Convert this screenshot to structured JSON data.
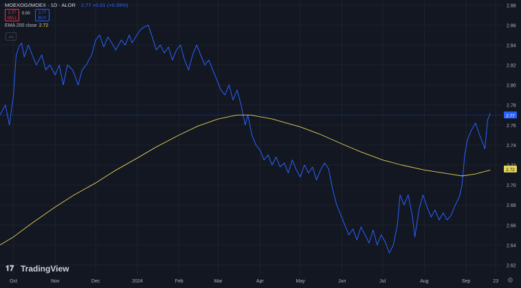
{
  "header": {
    "symbol": "MOEXOG/IMOEX · 1D · ALOR",
    "quote": "2.77 +0.01 (+0.39%)",
    "sell_price": "2.77",
    "sell_label": "SELL",
    "buy_price": "2.77",
    "buy_label": "BUY",
    "spread": "0.00"
  },
  "indicator": {
    "label": "EMA 200 close",
    "value": "2.72"
  },
  "collapse_glyph": "︿",
  "branding": {
    "logo": "TradingView"
  },
  "colors": {
    "background": "#131722",
    "price_line": "#2962ff",
    "ema_line": "#e5d559",
    "grid": "#1e222d"
  },
  "icons": [
    "collapse-icon",
    "tradingview-logo-icon",
    "settings-gear-icon"
  ],
  "chart_data": {
    "type": "line",
    "y_scale": "linear",
    "ylim": [
      2.61,
      2.885
    ],
    "yticks": [
      2.62,
      2.64,
      2.66,
      2.68,
      2.7,
      2.72,
      2.74,
      2.76,
      2.78,
      2.8,
      2.82,
      2.84,
      2.86,
      2.88
    ],
    "ytick_labels": [
      "2.62",
      "2.64",
      "2.66",
      "2.68",
      "2.70",
      "2.72",
      "2.74",
      "2.76",
      "2.78",
      "2.80",
      "2.82",
      "2.84",
      "2.86",
      "2.88"
    ],
    "x_start": "2023-09-21",
    "x_end": "2024-09-28",
    "xticks": [
      {
        "date": "2023-10-01",
        "label": "Oct"
      },
      {
        "date": "2023-11-01",
        "label": "Nov"
      },
      {
        "date": "2023-12-01",
        "label": "Dec"
      },
      {
        "date": "2024-01-01",
        "label": "2024"
      },
      {
        "date": "2024-02-01",
        "label": "Feb"
      },
      {
        "date": "2024-03-01",
        "label": "Mar"
      },
      {
        "date": "2024-04-01",
        "label": "Apr"
      },
      {
        "date": "2024-05-01",
        "label": "May"
      },
      {
        "date": "2024-06-01",
        "label": "Jun"
      },
      {
        "date": "2024-07-01",
        "label": "Jul"
      },
      {
        "date": "2024-08-01",
        "label": "Aug"
      },
      {
        "date": "2024-09-01",
        "label": "Sep"
      },
      {
        "date": "2024-09-23",
        "label": "23"
      }
    ],
    "grid": true,
    "price_axis_badges": [
      {
        "value": 2.77,
        "label": "2.77",
        "color": "#2962ff",
        "text_color": "#ffffff"
      },
      {
        "value": 2.716,
        "label": "2.72",
        "color": "#e5d559",
        "text_color": "#131722"
      }
    ],
    "series": [
      {
        "name": "MOEXOG/IMOEX",
        "color": "#2962ff",
        "points": [
          [
            "2023-09-21",
            2.77
          ],
          [
            "2023-09-25",
            2.78
          ],
          [
            "2023-09-28",
            2.76
          ],
          [
            "2023-10-01",
            2.79
          ],
          [
            "2023-10-03",
            2.83
          ],
          [
            "2023-10-05",
            2.838
          ],
          [
            "2023-10-07",
            2.842
          ],
          [
            "2023-10-09",
            2.828
          ],
          [
            "2023-10-12",
            2.84
          ],
          [
            "2023-10-15",
            2.83
          ],
          [
            "2023-10-18",
            2.82
          ],
          [
            "2023-10-22",
            2.83
          ],
          [
            "2023-10-25",
            2.815
          ],
          [
            "2023-10-28",
            2.82
          ],
          [
            "2023-11-01",
            2.81
          ],
          [
            "2023-11-04",
            2.82
          ],
          [
            "2023-11-07",
            2.8
          ],
          [
            "2023-11-10",
            2.82
          ],
          [
            "2023-11-14",
            2.815
          ],
          [
            "2023-11-18",
            2.8
          ],
          [
            "2023-11-21",
            2.815
          ],
          [
            "2023-11-24",
            2.82
          ],
          [
            "2023-11-28",
            2.83
          ],
          [
            "2023-12-01",
            2.845
          ],
          [
            "2023-12-04",
            2.85
          ],
          [
            "2023-12-07",
            2.838
          ],
          [
            "2023-12-10",
            2.848
          ],
          [
            "2023-12-13",
            2.842
          ],
          [
            "2023-12-16",
            2.835
          ],
          [
            "2023-12-20",
            2.845
          ],
          [
            "2023-12-23",
            2.84
          ],
          [
            "2023-12-26",
            2.85
          ],
          [
            "2023-12-28",
            2.842
          ],
          [
            "2024-01-03",
            2.855
          ],
          [
            "2024-01-06",
            2.858
          ],
          [
            "2024-01-09",
            2.86
          ],
          [
            "2024-01-12",
            2.848
          ],
          [
            "2024-01-15",
            2.835
          ],
          [
            "2024-01-18",
            2.84
          ],
          [
            "2024-01-21",
            2.832
          ],
          [
            "2024-01-24",
            2.838
          ],
          [
            "2024-01-27",
            2.825
          ],
          [
            "2024-01-30",
            2.835
          ],
          [
            "2024-02-02",
            2.84
          ],
          [
            "2024-02-05",
            2.825
          ],
          [
            "2024-02-08",
            2.815
          ],
          [
            "2024-02-11",
            2.83
          ],
          [
            "2024-02-14",
            2.84
          ],
          [
            "2024-02-17",
            2.83
          ],
          [
            "2024-02-20",
            2.82
          ],
          [
            "2024-02-23",
            2.825
          ],
          [
            "2024-02-26",
            2.815
          ],
          [
            "2024-02-29",
            2.805
          ],
          [
            "2024-03-03",
            2.795
          ],
          [
            "2024-03-06",
            2.79
          ],
          [
            "2024-03-09",
            2.8
          ],
          [
            "2024-03-12",
            2.785
          ],
          [
            "2024-03-15",
            2.795
          ],
          [
            "2024-03-18",
            2.78
          ],
          [
            "2024-03-21",
            2.76
          ],
          [
            "2024-03-23",
            2.77
          ],
          [
            "2024-03-26",
            2.75
          ],
          [
            "2024-03-29",
            2.74
          ],
          [
            "2024-04-01",
            2.735
          ],
          [
            "2024-04-04",
            2.725
          ],
          [
            "2024-04-07",
            2.73
          ],
          [
            "2024-04-10",
            2.72
          ],
          [
            "2024-04-13",
            2.728
          ],
          [
            "2024-04-16",
            2.718
          ],
          [
            "2024-04-19",
            2.722
          ],
          [
            "2024-04-22",
            2.712
          ],
          [
            "2024-04-25",
            2.725
          ],
          [
            "2024-04-28",
            2.715
          ],
          [
            "2024-05-01",
            2.708
          ],
          [
            "2024-05-04",
            2.72
          ],
          [
            "2024-05-07",
            2.712
          ],
          [
            "2024-05-10",
            2.718
          ],
          [
            "2024-05-13",
            2.705
          ],
          [
            "2024-05-16",
            2.715
          ],
          [
            "2024-05-19",
            2.722
          ],
          [
            "2024-05-22",
            2.716
          ],
          [
            "2024-05-25",
            2.695
          ],
          [
            "2024-05-28",
            2.68
          ],
          [
            "2024-05-31",
            2.67
          ],
          [
            "2024-06-03",
            2.66
          ],
          [
            "2024-06-06",
            2.65
          ],
          [
            "2024-06-09",
            2.656
          ],
          [
            "2024-06-12",
            2.645
          ],
          [
            "2024-06-15",
            2.658
          ],
          [
            "2024-06-18",
            2.65
          ],
          [
            "2024-06-21",
            2.642
          ],
          [
            "2024-06-24",
            2.655
          ],
          [
            "2024-06-27",
            2.64
          ],
          [
            "2024-06-30",
            2.65
          ],
          [
            "2024-07-03",
            2.643
          ],
          [
            "2024-07-06",
            2.632
          ],
          [
            "2024-07-09",
            2.64
          ],
          [
            "2024-07-12",
            2.66
          ],
          [
            "2024-07-14",
            2.69
          ],
          [
            "2024-07-17",
            2.68
          ],
          [
            "2024-07-20",
            2.69
          ],
          [
            "2024-07-23",
            2.67
          ],
          [
            "2024-07-25",
            2.648
          ],
          [
            "2024-07-28",
            2.675
          ],
          [
            "2024-07-31",
            2.69
          ],
          [
            "2024-08-03",
            2.678
          ],
          [
            "2024-08-06",
            2.668
          ],
          [
            "2024-08-09",
            2.675
          ],
          [
            "2024-08-12",
            2.665
          ],
          [
            "2024-08-15",
            2.672
          ],
          [
            "2024-08-18",
            2.665
          ],
          [
            "2024-08-21",
            2.67
          ],
          [
            "2024-08-24",
            2.68
          ],
          [
            "2024-08-27",
            2.688
          ],
          [
            "2024-08-29",
            2.7
          ],
          [
            "2024-08-31",
            2.73
          ],
          [
            "2024-09-02",
            2.745
          ],
          [
            "2024-09-05",
            2.755
          ],
          [
            "2024-09-08",
            2.762
          ],
          [
            "2024-09-11",
            2.75
          ],
          [
            "2024-09-14",
            2.74
          ],
          [
            "2024-09-15",
            2.736
          ],
          [
            "2024-09-17",
            2.765
          ],
          [
            "2024-09-19",
            2.772
          ]
        ]
      },
      {
        "name": "EMA 200 close",
        "color": "#e5d559",
        "points": [
          [
            "2023-09-21",
            2.64
          ],
          [
            "2023-10-01",
            2.648
          ],
          [
            "2023-10-15",
            2.662
          ],
          [
            "2023-11-01",
            2.678
          ],
          [
            "2023-11-15",
            2.69
          ],
          [
            "2023-12-01",
            2.702
          ],
          [
            "2023-12-15",
            2.714
          ],
          [
            "2024-01-01",
            2.727
          ],
          [
            "2024-01-15",
            2.738
          ],
          [
            "2024-02-01",
            2.75
          ],
          [
            "2024-02-15",
            2.759
          ],
          [
            "2024-03-01",
            2.766
          ],
          [
            "2024-03-15",
            2.77
          ],
          [
            "2024-03-25",
            2.77
          ],
          [
            "2024-04-10",
            2.766
          ],
          [
            "2024-05-01",
            2.758
          ],
          [
            "2024-05-15",
            2.751
          ],
          [
            "2024-06-01",
            2.741
          ],
          [
            "2024-06-15",
            2.733
          ],
          [
            "2024-07-01",
            2.725
          ],
          [
            "2024-07-15",
            2.72
          ],
          [
            "2024-08-01",
            2.715
          ],
          [
            "2024-08-15",
            2.712
          ],
          [
            "2024-08-29",
            2.709
          ],
          [
            "2024-09-08",
            2.711
          ],
          [
            "2024-09-19",
            2.715
          ]
        ]
      }
    ]
  }
}
